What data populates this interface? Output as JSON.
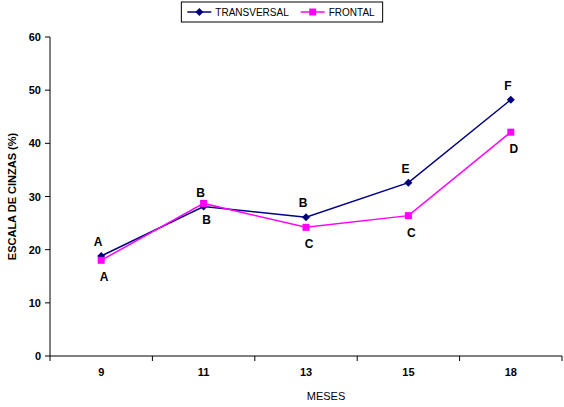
{
  "chart_data": {
    "type": "line",
    "x_label": "MESES",
    "y_label": "ESCALA DE CINZAS (%)",
    "categories": [
      "9",
      "11",
      "13",
      "15",
      "18"
    ],
    "series": [
      {
        "name": "TRANSVERSAL",
        "color": "#000080",
        "marker": "diamond",
        "values": [
          18.8,
          28.1,
          26.1,
          32.6,
          48.2
        ],
        "annotations": [
          "A",
          "B",
          "B",
          "E",
          "F"
        ]
      },
      {
        "name": "FRONTAL",
        "color": "#ff00ff",
        "marker": "square",
        "values": [
          18.0,
          28.7,
          24.2,
          26.4,
          42.1
        ],
        "annotations": [
          "A",
          "B",
          "C",
          "C",
          "D"
        ]
      }
    ],
    "ylim": [
      0,
      60
    ],
    "yticks": [
      0,
      10,
      20,
      30,
      40,
      50,
      60
    ],
    "grid": false,
    "legend": "top"
  }
}
